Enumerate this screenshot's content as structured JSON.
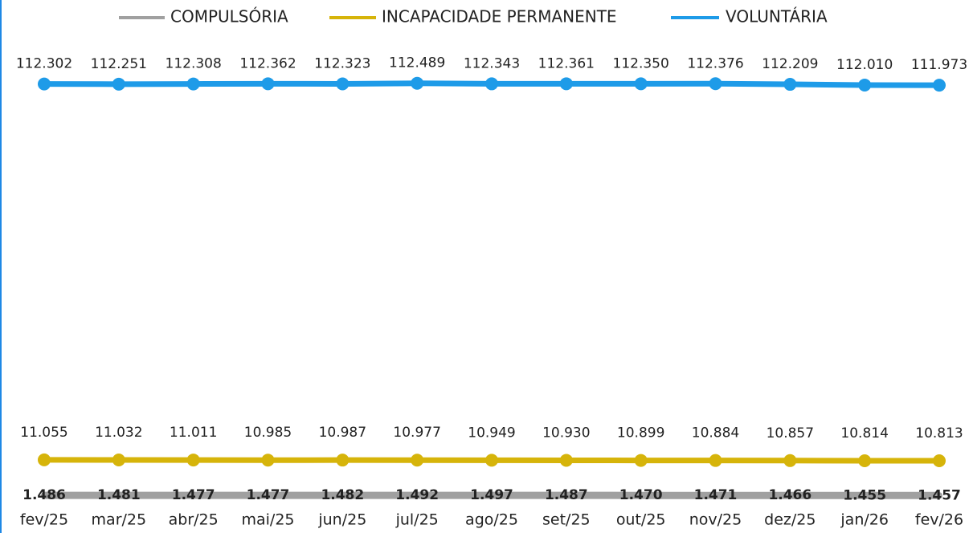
{
  "chart_data": {
    "type": "line",
    "categories": [
      "fev/25",
      "mar/25",
      "abr/25",
      "mai/25",
      "jun/25",
      "jul/25",
      "ago/25",
      "set/25",
      "out/25",
      "nov/25",
      "dez/25",
      "jan/26",
      "fev/26"
    ],
    "series": [
      {
        "name": "COMPULSÓRIA",
        "color": "#a0a0a0",
        "values": [
          1486,
          1481,
          1477,
          1477,
          1482,
          1492,
          1497,
          1487,
          1470,
          1471,
          1466,
          1455,
          1457
        ],
        "value_labels": [
          "1.486",
          "1.481",
          "1.477",
          "1.477",
          "1.482",
          "1.492",
          "1.497",
          "1.487",
          "1.470",
          "1.471",
          "1.466",
          "1.455",
          "1.457"
        ]
      },
      {
        "name": "INCAPACIDADE PERMANENTE",
        "color": "#d6b40a",
        "values": [
          11055,
          11032,
          11011,
          10985,
          10987,
          10977,
          10949,
          10930,
          10899,
          10884,
          10857,
          10814,
          10813
        ],
        "value_labels": [
          "11.055",
          "11.032",
          "11.011",
          "10.985",
          "10.987",
          "10.977",
          "10.949",
          "10.930",
          "10.899",
          "10.884",
          "10.857",
          "10.814",
          "10.813"
        ]
      },
      {
        "name": "VOLUNTÁRIA",
        "color": "#1e9be8",
        "values": [
          112302,
          112251,
          112308,
          112362,
          112323,
          112489,
          112343,
          112361,
          112350,
          112376,
          112209,
          112010,
          111973
        ],
        "value_labels": [
          "112.302",
          "112.251",
          "112.308",
          "112.362",
          "112.323",
          "112.489",
          "112.343",
          "112.361",
          "112.350",
          "112.376",
          "112.209",
          "112.010",
          "111.973"
        ]
      }
    ],
    "ylim": [
      0,
      120000
    ],
    "legend": "top"
  }
}
